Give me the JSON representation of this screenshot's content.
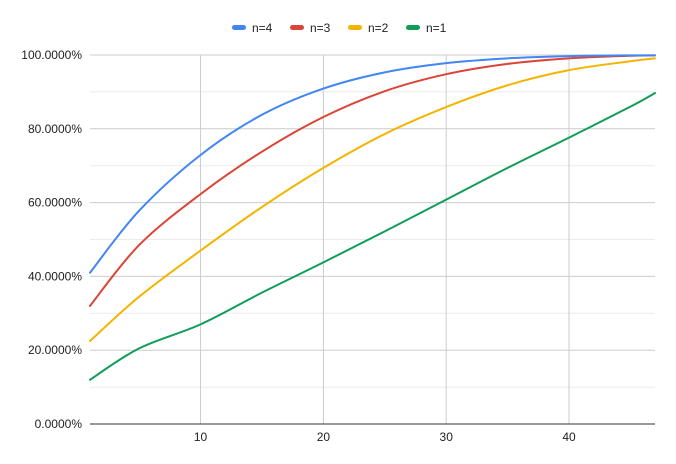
{
  "chart_data": {
    "type": "line",
    "title": "",
    "xlabel": "",
    "ylabel": "",
    "xlim": [
      1,
      47
    ],
    "ylim": [
      0,
      1
    ],
    "x_ticks": [
      10,
      20,
      30,
      40
    ],
    "x_tick_labels": [
      "10",
      "20",
      "30",
      "40"
    ],
    "y_ticks": [
      0,
      0.2,
      0.4,
      0.6,
      0.8,
      1.0
    ],
    "y_tick_labels": [
      "0.0000%",
      "20.0000%",
      "40.0000%",
      "60.0000%",
      "80.0000%",
      "100.0000%"
    ],
    "y_minor_gridlines": [
      0.1,
      0.3,
      0.5,
      0.7,
      0.9
    ],
    "grid": true,
    "legend_position": "top",
    "x": [
      1,
      5,
      10,
      15,
      20,
      25,
      30,
      35,
      40,
      45,
      47
    ],
    "series": [
      {
        "name": "n=4",
        "color": "#4285F4",
        "values": [
          0.41,
          0.578,
          0.729,
          0.838,
          0.909,
          0.953,
          0.978,
          0.991,
          0.997,
          0.999,
          0.999
        ]
      },
      {
        "name": "n=3",
        "color": "#DB4437",
        "values": [
          0.32,
          0.485,
          0.623,
          0.738,
          0.832,
          0.902,
          0.948,
          0.976,
          0.991,
          0.998,
          0.999
        ]
      },
      {
        "name": "n=2",
        "color": "#F4B400",
        "values": [
          0.225,
          0.345,
          0.47,
          0.588,
          0.694,
          0.786,
          0.859,
          0.918,
          0.959,
          0.983,
          0.991
        ]
      },
      {
        "name": "n=1",
        "color": "#0F9D58",
        "values": [
          0.12,
          0.205,
          0.27,
          0.356,
          0.438,
          0.522,
          0.608,
          0.694,
          0.776,
          0.86,
          0.897
        ]
      }
    ]
  }
}
